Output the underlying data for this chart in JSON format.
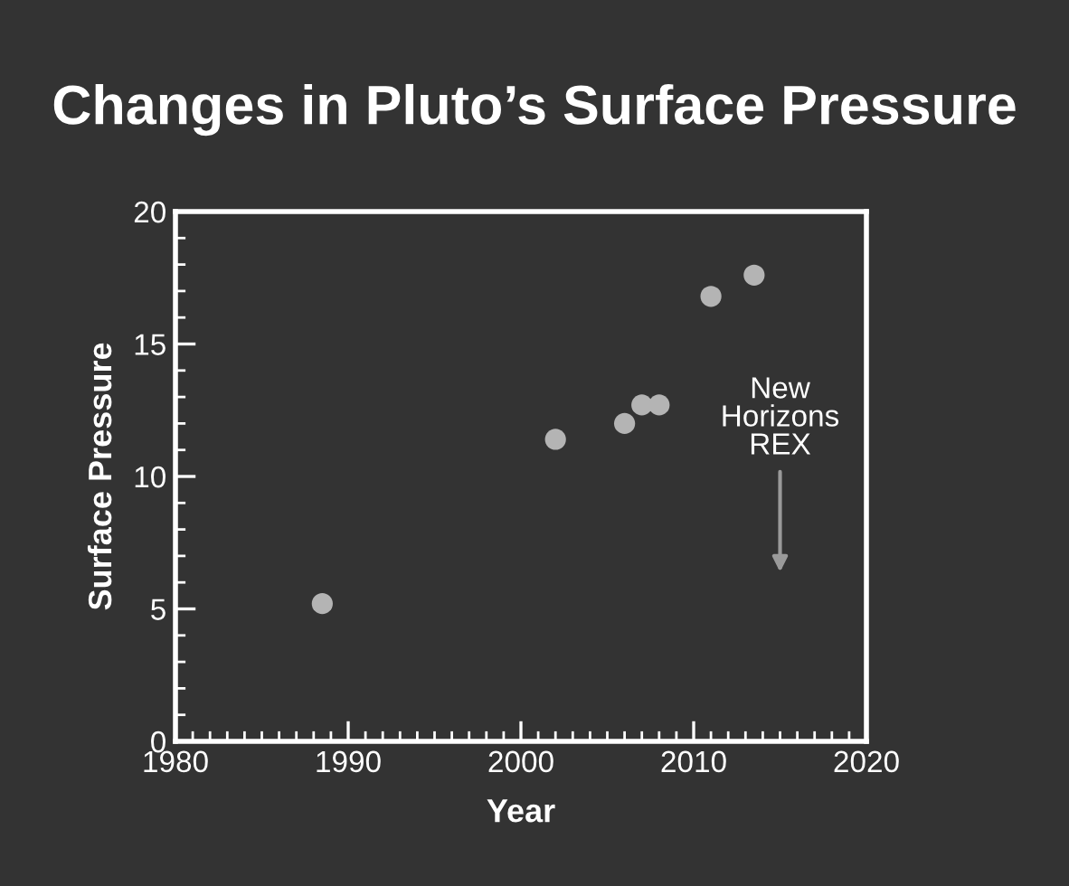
{
  "chart_data": {
    "type": "scatter",
    "title": "Changes in Pluto’s Surface Pressure",
    "xlabel": "Year",
    "ylabel": "Surface Pressure",
    "x": [
      1988.5,
      2002.0,
      2006.0,
      2007.0,
      2008.0,
      2011.0,
      2013.5
    ],
    "series": [
      {
        "color": "#b4b4b4",
        "values": [
          5.2,
          11.4,
          12.0,
          12.7,
          12.7,
          16.8,
          17.6
        ]
      }
    ],
    "xlim": [
      1980,
      2020
    ],
    "xticks": [
      1980,
      1990,
      2000,
      2010,
      2020
    ],
    "ylim": [
      0,
      20
    ],
    "yticks": [
      0,
      5,
      10,
      15,
      20
    ],
    "marker": "circle",
    "grid": false,
    "legend": false,
    "annotations": [
      "New\nHorizons\nREX"
    ]
  }
}
